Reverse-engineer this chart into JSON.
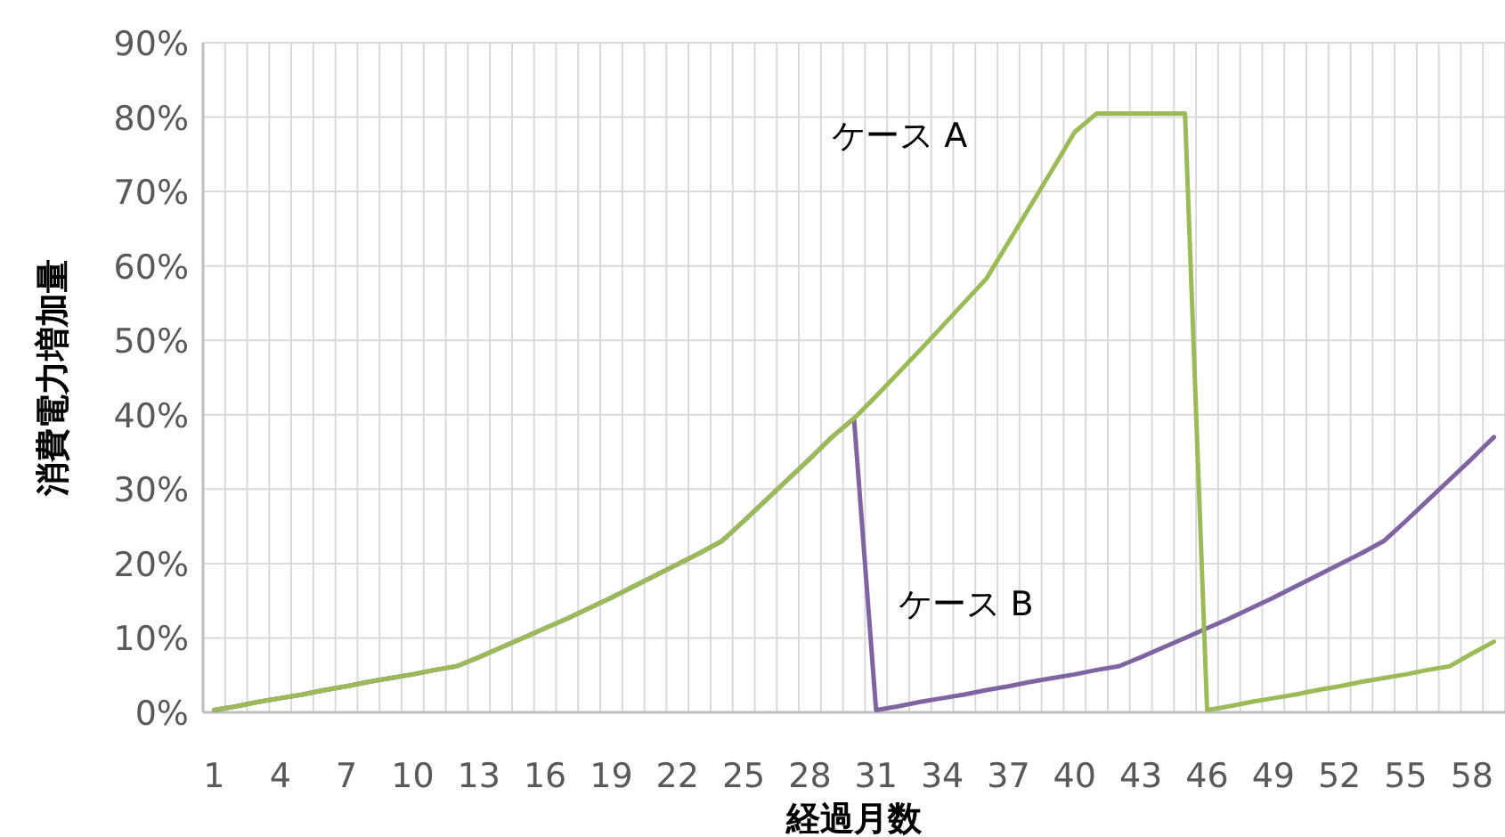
{
  "chart_data": {
    "type": "line",
    "xlabel": "経過月数",
    "ylabel": "消費電力増加量",
    "categories": [
      "1",
      null,
      null,
      "4",
      null,
      null,
      "7",
      null,
      null,
      "10",
      null,
      null,
      "13",
      null,
      null,
      "16",
      null,
      null,
      "19",
      null,
      null,
      "22",
      null,
      null,
      "25",
      null,
      null,
      "28",
      null,
      null,
      "31",
      null,
      null,
      "34",
      null,
      null,
      "37",
      null,
      null,
      "40",
      null,
      null,
      "43",
      null,
      null,
      "46",
      null,
      null,
      "49",
      null,
      null,
      "52",
      null,
      null,
      "55",
      null,
      null,
      "58",
      null
    ],
    "ylim": [
      0,
      90
    ],
    "yticks": [
      {
        "value": 0,
        "label": "0%"
      },
      {
        "value": 10,
        "label": "10%"
      },
      {
        "value": 20,
        "label": "20%"
      },
      {
        "value": 30,
        "label": "30%"
      },
      {
        "value": 40,
        "label": "40%"
      },
      {
        "value": 50,
        "label": "50%"
      },
      {
        "value": 60,
        "label": "60%"
      },
      {
        "value": 70,
        "label": "70%"
      },
      {
        "value": 80,
        "label": "80%"
      },
      {
        "value": 90,
        "label": "90%"
      }
    ],
    "grid": true,
    "marker": "none",
    "line_style": "solid",
    "series": [
      {
        "name": "ケース A",
        "color": "#9bbb59",
        "values": [
          0.3,
          0.8,
          1.4,
          1.9,
          2.4,
          3.0,
          3.5,
          4.1,
          4.6,
          5.1,
          5.7,
          6.2,
          7.4,
          8.7,
          10.0,
          11.3,
          12.6,
          14.0,
          15.4,
          16.9,
          18.4,
          19.9,
          21.4,
          23.0,
          25.7,
          28.5,
          31.3,
          34.1,
          37.0,
          39.5,
          42.5,
          45.6,
          48.7,
          51.9,
          55.1,
          58.3,
          63.2,
          68.1,
          73.0,
          78.0,
          80.5,
          80.5,
          80.5,
          80.5,
          80.5,
          0.3,
          0.8,
          1.4,
          1.9,
          2.4,
          3.0,
          3.5,
          4.1,
          4.6,
          5.1,
          5.7,
          6.2,
          7.9,
          9.5
        ]
      },
      {
        "name": "ケース B",
        "color": "#8064a2",
        "values": [
          0.3,
          0.8,
          1.4,
          1.9,
          2.4,
          3.0,
          3.5,
          4.1,
          4.6,
          5.1,
          5.7,
          6.2,
          7.4,
          8.7,
          10.0,
          11.3,
          12.6,
          14.0,
          15.4,
          16.9,
          18.4,
          19.9,
          21.4,
          23.0,
          25.7,
          28.5,
          31.3,
          34.1,
          37.0,
          39.5,
          0.3,
          0.8,
          1.4,
          1.9,
          2.4,
          3.0,
          3.5,
          4.1,
          4.6,
          5.1,
          5.7,
          6.2,
          7.4,
          8.7,
          10.0,
          11.3,
          12.6,
          14.0,
          15.4,
          16.9,
          18.4,
          19.9,
          21.4,
          23.0,
          25.7,
          28.5,
          31.3,
          34.1,
          37.0
        ]
      }
    ]
  }
}
